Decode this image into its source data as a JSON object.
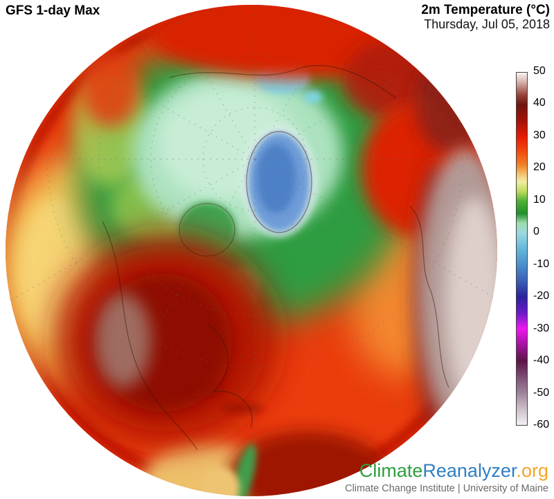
{
  "header": {
    "left_title": "GFS 1-day Max",
    "right_title": "2m Temperature (°C)",
    "right_subtitle": "Thursday, Jul 05, 2018"
  },
  "map": {
    "projection": "orthographic-globe",
    "view": "Arctic / North America / North Atlantic hemisphere",
    "visible_features": [
      "Arctic sea ice shown pale mint-green near 0-5 °C",
      "Greenland ice sheet shown blue (below 0 °C)",
      "Dark red heat over western and central United States and Mexico",
      "Gray-white extreme heat (above 40 °C) over Sahara and Middle East",
      "Red heat across Europe and Siberia",
      "Yellow-orange Pacific and Atlantic oceans",
      "Dashed gray graticule lines"
    ]
  },
  "colorbar": {
    "unit": "°C",
    "max": 50,
    "min": -60,
    "tick_step": 10,
    "ticks": [
      "50",
      "40",
      "30",
      "20",
      "10",
      "0",
      "-10",
      "-20",
      "-30",
      "-40",
      "-50",
      "-60"
    ],
    "stops": [
      {
        "v": 50,
        "c": "#faf4f2"
      },
      {
        "v": 47,
        "c": "#d8b0aa"
      },
      {
        "v": 43,
        "c": "#93423a"
      },
      {
        "v": 40,
        "c": "#6e1410"
      },
      {
        "v": 35,
        "c": "#a31208"
      },
      {
        "v": 30,
        "c": "#e51b02"
      },
      {
        "v": 25,
        "c": "#f24e0e"
      },
      {
        "v": 21,
        "c": "#f1862a"
      },
      {
        "v": 18,
        "c": "#f4c878"
      },
      {
        "v": 16,
        "c": "#f0eda2"
      },
      {
        "v": 13,
        "c": "#c3dc5e"
      },
      {
        "v": 10,
        "c": "#50b135"
      },
      {
        "v": 6,
        "c": "#1f8f2a"
      },
      {
        "v": 3,
        "c": "#9fdcae"
      },
      {
        "v": 0,
        "c": "#9cd8e0"
      },
      {
        "v": -4,
        "c": "#6cc0dc"
      },
      {
        "v": -10,
        "c": "#4a90cc"
      },
      {
        "v": -15,
        "c": "#3a5fb4"
      },
      {
        "v": -20,
        "c": "#28249c"
      },
      {
        "v": -25,
        "c": "#6b1ac8"
      },
      {
        "v": -30,
        "c": "#ee18ee"
      },
      {
        "v": -35,
        "c": "#a512a0"
      },
      {
        "v": -40,
        "c": "#5c1347"
      },
      {
        "v": -45,
        "c": "#7d4f74"
      },
      {
        "v": -50,
        "c": "#9e849a"
      },
      {
        "v": -55,
        "c": "#ccbfca"
      },
      {
        "v": -60,
        "c": "#f5f1f5"
      }
    ]
  },
  "branding": {
    "site_parts": [
      {
        "text": "Climate",
        "color": "#2e9e3e"
      },
      {
        "text": "Reanalyzer",
        "color": "#2f7ec2"
      },
      {
        "text": ".org",
        "color": "#f5a427"
      }
    ],
    "subtitle": "Climate Change Institute | University of Maine"
  }
}
